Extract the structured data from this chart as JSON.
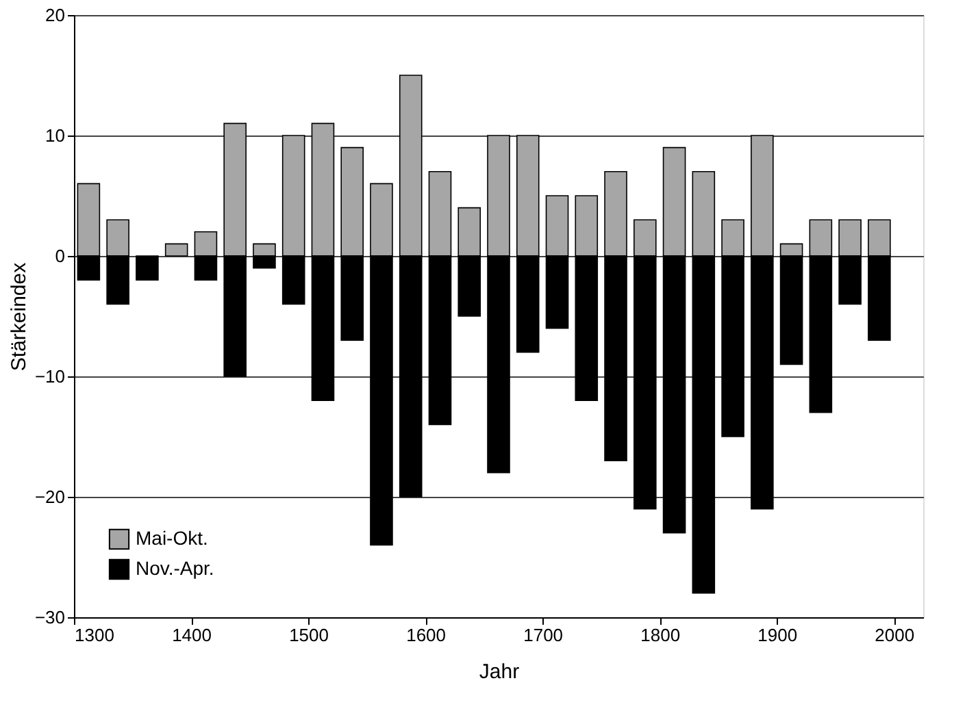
{
  "chart_data": {
    "type": "bar",
    "xlabel": "Jahr",
    "ylabel": "Stärkeindex",
    "x": [
      1312.5,
      1337.5,
      1362.5,
      1387.5,
      1412.5,
      1437.5,
      1462.5,
      1487.5,
      1512.5,
      1537.5,
      1562.5,
      1587.5,
      1612.5,
      1637.5,
      1662.5,
      1687.5,
      1712.5,
      1737.5,
      1762.5,
      1787.5,
      1812.5,
      1837.5,
      1862.5,
      1887.5,
      1912.5,
      1937.5,
      1962.5,
      1987.5
    ],
    "series": [
      {
        "name": "Mai-Okt.",
        "color": "#a6a6a6",
        "values": [
          6,
          3,
          null,
          1,
          2,
          11,
          1,
          10,
          11,
          9,
          6,
          15,
          7,
          4,
          10,
          10,
          5,
          5,
          7,
          3,
          9,
          7,
          3,
          10,
          1,
          3,
          3,
          3
        ]
      },
      {
        "name": "Nov.-Apr.",
        "color": "#000000",
        "values": [
          -2,
          -4,
          -2,
          null,
          -2,
          -10,
          -1,
          -4,
          -12,
          -7,
          -24,
          -20,
          -14,
          -5,
          -18,
          -8,
          -6,
          -12,
          -17,
          -21,
          -23,
          -28,
          -15,
          -21,
          -9,
          -13,
          -4,
          -7
        ]
      }
    ],
    "xlim": [
      1300,
      2025
    ],
    "xticks": [
      1300,
      1400,
      1500,
      1600,
      1700,
      1800,
      1900,
      2000
    ],
    "ylim": [
      -30,
      20
    ],
    "yticks": [
      -30,
      -20,
      -10,
      0,
      10,
      20
    ],
    "grid": "y",
    "legend": "bottom left",
    "stacked": true
  }
}
